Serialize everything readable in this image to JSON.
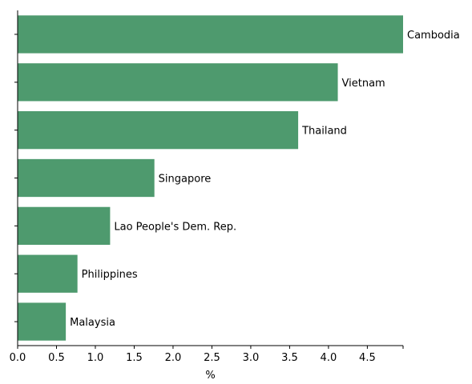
{
  "chart_data": {
    "type": "bar",
    "orientation": "horizontal",
    "categories": [
      "Cambodia",
      "Vietnam",
      "Thailand",
      "Singapore",
      "Lao People's Dem. Rep.",
      "Philippines",
      "Malaysia"
    ],
    "values": [
      4.96,
      4.12,
      3.61,
      1.76,
      1.19,
      0.77,
      0.62
    ],
    "xlabel": "%",
    "ylabel": "",
    "xlim": [
      0,
      4.96
    ],
    "xticks": [
      "0.0",
      "0.5",
      "1.0",
      "1.5",
      "2.0",
      "2.5",
      "3.0",
      "3.5",
      "4.0",
      "4.5"
    ],
    "grid": false,
    "bar_color": "#4e9a6e"
  }
}
